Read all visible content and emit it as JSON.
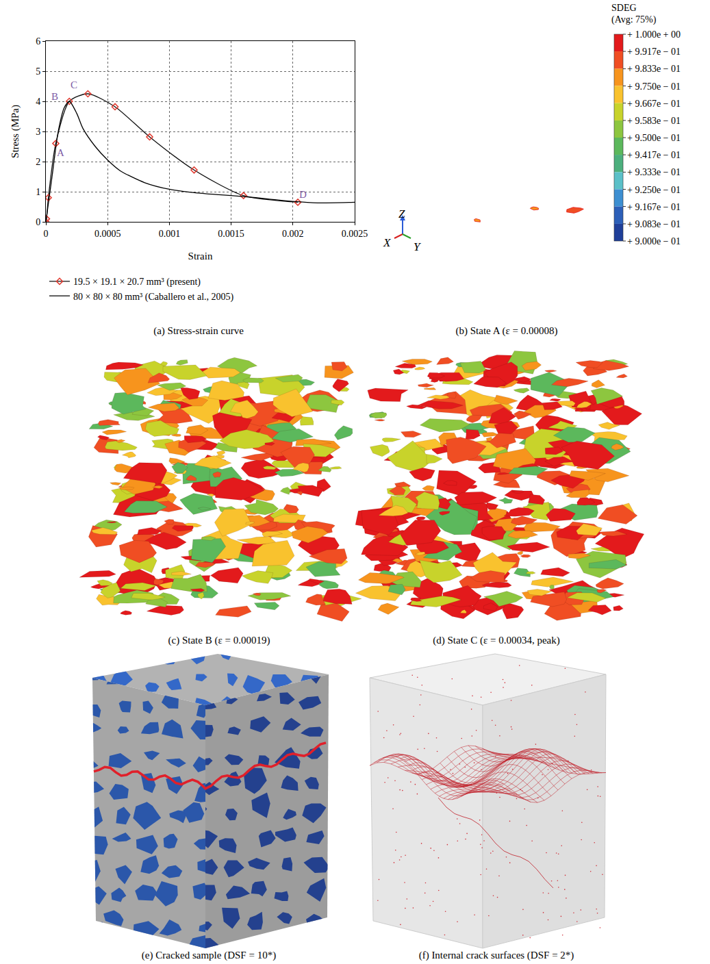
{
  "chart_data": {
    "type": "line",
    "xlabel": "Strain",
    "ylabel": "Stress (MPa)",
    "xlim": [
      0,
      0.0025
    ],
    "ylim": [
      0,
      6
    ],
    "xticks": [
      0,
      0.0005,
      0.001,
      0.0015,
      0.002,
      0.0025
    ],
    "yticks": [
      0,
      1,
      2,
      3,
      4,
      5,
      6
    ],
    "grid": true,
    "legend": "bottom",
    "series": [
      {
        "name": "19.5 × 19.1 × 20.7 mm³ (present)",
        "color": "#e03a2f",
        "marker": "diamond-open",
        "line_style": "solid",
        "x": [
          0,
          5e-06,
          2e-05,
          8e-05,
          0.00019,
          0.00034,
          0.00056,
          0.00084,
          0.0012,
          0.0016,
          0.00204
        ],
        "values": [
          0,
          0.1,
          0.8,
          2.6,
          4.0,
          4.25,
          3.82,
          2.82,
          1.72,
          0.87,
          0.65
        ]
      },
      {
        "name": "80 × 80 × 80 mm³ (Caballero et al., 2005)",
        "color": "#000000",
        "line_style": "solid",
        "x": [
          0,
          5e-05,
          0.0001,
          0.00015,
          0.00019,
          0.00025,
          0.0003,
          0.0004,
          0.0005,
          0.0006,
          0.0008,
          0.001,
          0.0012,
          0.0014,
          0.0016,
          0.0018,
          0.002,
          0.0022,
          0.0025
        ],
        "values": [
          0,
          1.5,
          3.0,
          3.8,
          4.0,
          3.6,
          3.1,
          2.5,
          2.05,
          1.7,
          1.3,
          1.08,
          0.97,
          0.9,
          0.84,
          0.76,
          0.68,
          0.63,
          0.65
        ]
      }
    ],
    "annotations": [
      {
        "text": "A",
        "x": 0.00012,
        "y": 2.3,
        "color": "#7d5ba6"
      },
      {
        "text": "B",
        "x": 7e-05,
        "y": 4.15,
        "color": "#7d5ba6"
      },
      {
        "text": "C",
        "x": 0.00023,
        "y": 4.55,
        "color": "#7d5ba6"
      },
      {
        "text": "D",
        "x": 0.00208,
        "y": 0.9,
        "color": "#7d5ba6"
      }
    ]
  },
  "figure": {
    "captions": [
      "(a) Stress-strain curve",
      "(b) State A (ε = 0.00008)",
      "(c) State B (ε = 0.00019)",
      "(d) State C (ε = 0.00034, peak)",
      "(e) Cracked sample (DSF = 10*)",
      "(f) Internal crack surfaces (DSF = 2*)"
    ],
    "axis_triad": [
      "X",
      "Y",
      "Z"
    ],
    "colorbar": {
      "title": [
        "SDEG",
        "(Avg: 75%)"
      ],
      "range": [
        0.9,
        1.0
      ],
      "ticks": [
        {
          "value": 1.0,
          "label": "+ 1.000e + 00"
        },
        {
          "value": 0.9917,
          "label": "+ 9.917e − 01"
        },
        {
          "value": 0.9833,
          "label": "+ 9.833e − 01"
        },
        {
          "value": 0.975,
          "label": "+ 9.750e − 01"
        },
        {
          "value": 0.9667,
          "label": "+ 9.667e − 01"
        },
        {
          "value": 0.9583,
          "label": "+ 9.583e − 01"
        },
        {
          "value": 0.95,
          "label": "+ 9.500e − 01"
        },
        {
          "value": 0.9417,
          "label": "+ 9.417e − 01"
        },
        {
          "value": 0.9333,
          "label": "+ 9.333e − 01"
        },
        {
          "value": 0.925,
          "label": "+ 9.250e − 01"
        },
        {
          "value": 0.9167,
          "label": "+ 9.167e − 01"
        },
        {
          "value": 0.9083,
          "label": "+ 9.083e − 01"
        },
        {
          "value": 0.9,
          "label": "+ 9.000e − 01"
        }
      ],
      "colors": [
        "#e31a1c",
        "#f04e23",
        "#f7941d",
        "#f9c22e",
        "#c8d32b",
        "#8dc63f",
        "#5cb85c",
        "#4caf7d",
        "#5bc0c8",
        "#3d8fd1",
        "#2c5fb8",
        "#1f3f99"
      ]
    }
  }
}
